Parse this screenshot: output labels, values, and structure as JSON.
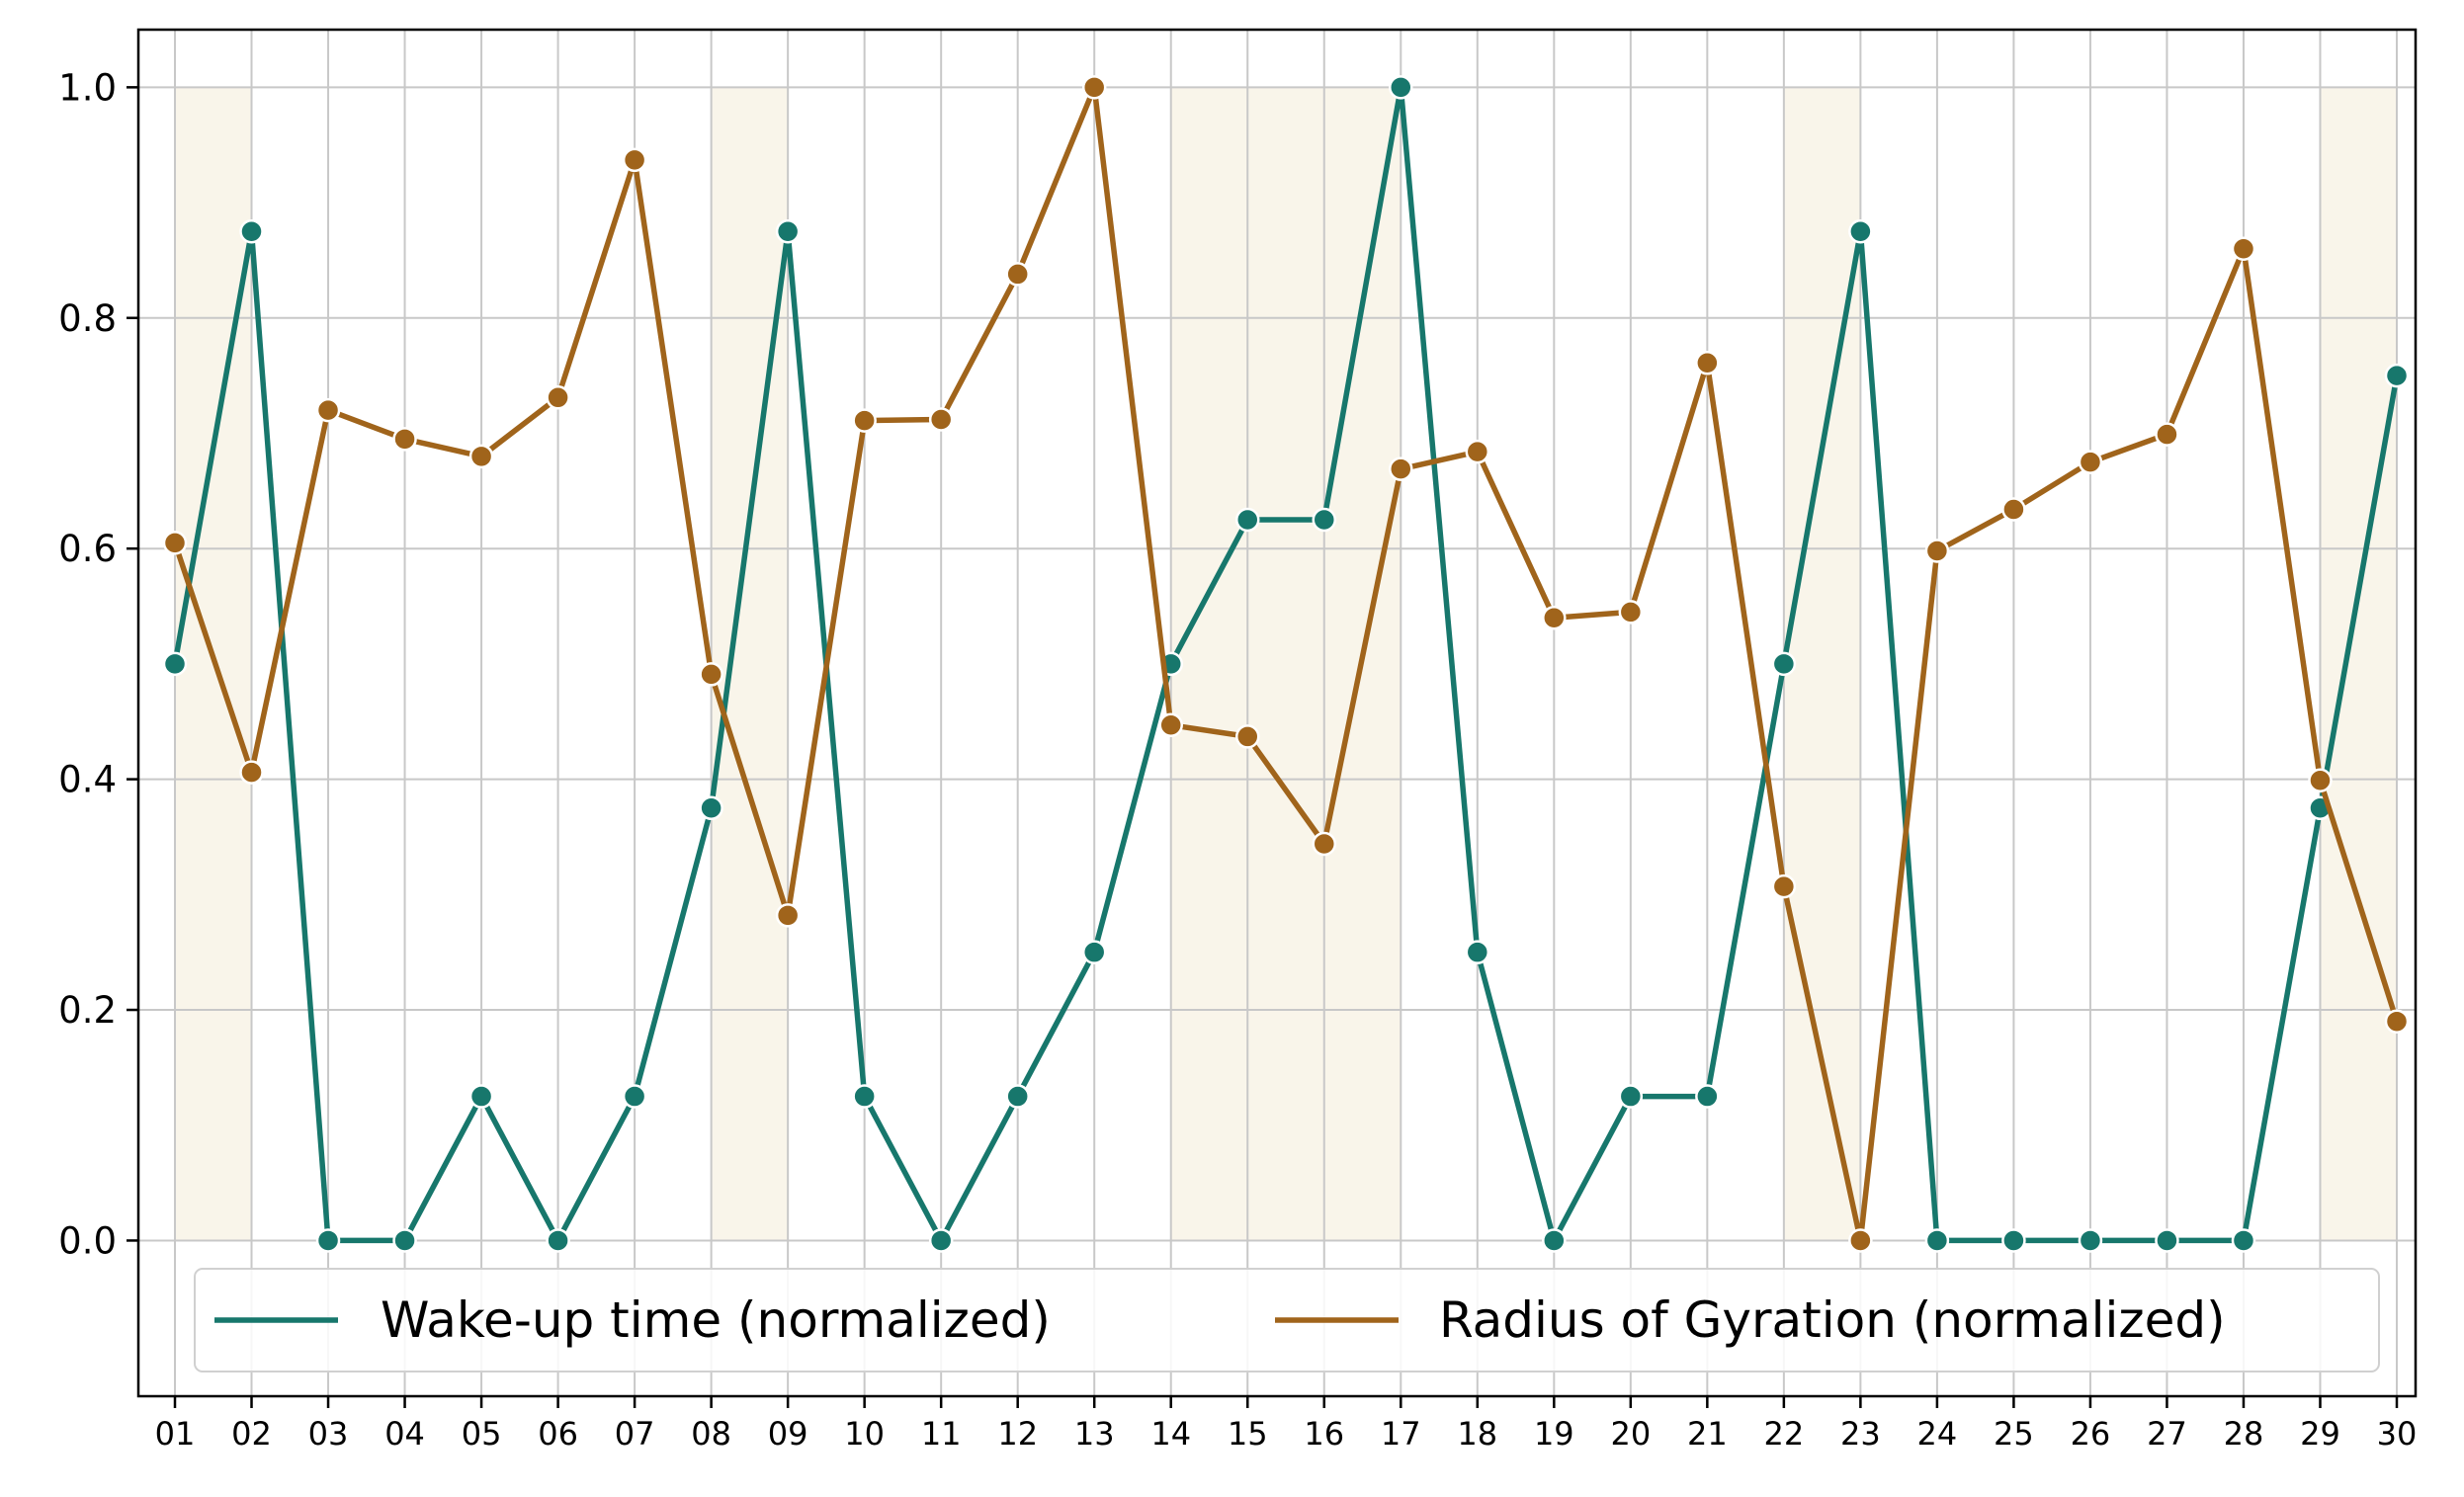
{
  "chart_data": {
    "type": "line",
    "title": "",
    "xlabel": "",
    "ylabel": "",
    "x": [
      "01",
      "02",
      "03",
      "04",
      "05",
      "06",
      "07",
      "08",
      "09",
      "10",
      "11",
      "12",
      "13",
      "14",
      "15",
      "16",
      "17",
      "18",
      "19",
      "20",
      "21",
      "22",
      "23",
      "24",
      "25",
      "26",
      "27",
      "28",
      "29",
      "30"
    ],
    "ylim": [
      -0.135,
      1.05
    ],
    "yticks": [
      "0.0",
      "0.2",
      "0.4",
      "0.6",
      "0.8",
      "1.0"
    ],
    "grid": true,
    "legend_placement": "bottom",
    "shaded_days": [
      "01",
      "08",
      "14",
      "15",
      "16",
      "22",
      "29"
    ],
    "shade_color": "#f9f5ea",
    "series": [
      {
        "name": "Wake-up time (normalized)",
        "color": "#17776c",
        "values": [
          0.5,
          0.875,
          0.0,
          0.0,
          0.125,
          0.0,
          0.125,
          0.375,
          0.875,
          0.125,
          0.0,
          0.125,
          0.25,
          0.5,
          0.625,
          0.625,
          1.0,
          0.25,
          0.0,
          0.125,
          0.125,
          0.5,
          0.875,
          0.0,
          0.0,
          0.0,
          0.0,
          0.0,
          0.375,
          0.75
        ]
      },
      {
        "name": "Radius of Gyration (normalized)",
        "color": "#a0641b",
        "values": [
          0.605,
          0.406,
          0.72,
          0.695,
          0.68,
          0.731,
          0.937,
          0.491,
          0.282,
          0.711,
          0.712,
          0.838,
          1.0,
          0.447,
          0.437,
          0.344,
          0.669,
          0.684,
          0.54,
          0.545,
          0.761,
          0.307,
          0.0,
          0.598,
          0.634,
          0.675,
          0.699,
          0.86,
          0.399,
          0.19
        ]
      }
    ]
  }
}
